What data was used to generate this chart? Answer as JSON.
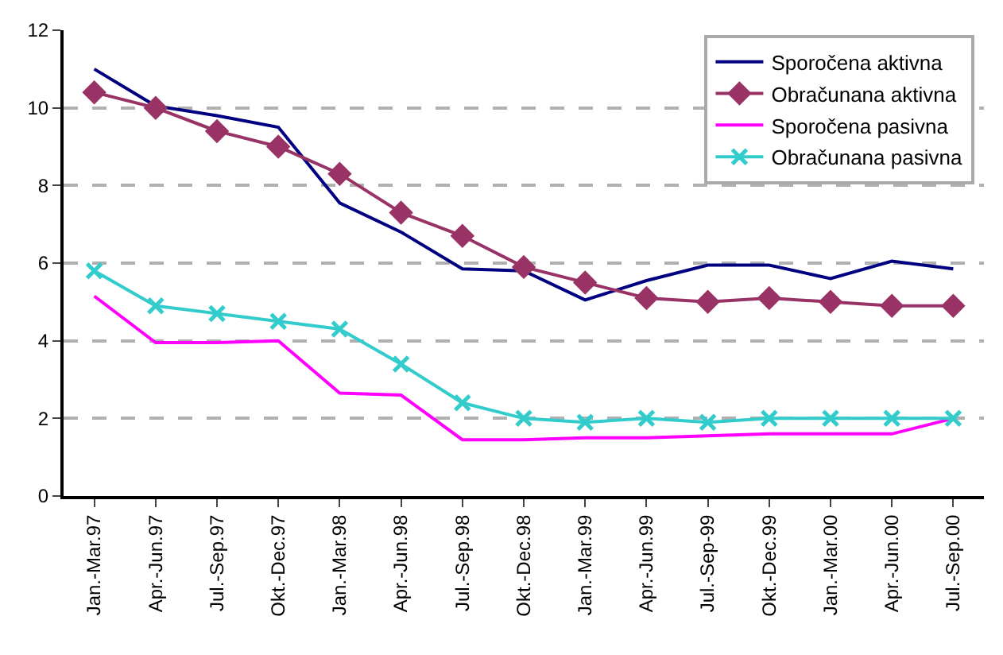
{
  "chart_data": {
    "type": "line",
    "categories": [
      "Jan.-Mar.97",
      "Apr.-Jun.97",
      "Jul.-Sep.97",
      "Okt.-Dec.97",
      "Jan.-Mar.98",
      "Apr.-Jun.98",
      "Jul.-Sep.98",
      "Okt.-Dec.98",
      "Jan.-Mar.99",
      "Apr.-Jun.99",
      "Jul.-Sep-99",
      "Okt.-Dec.99",
      "Jan.-Mar.00",
      "Apr.-Jun.00",
      "Jul.-Sep.00"
    ],
    "series": [
      {
        "name": "Sporočena aktivna",
        "color": "#000080",
        "marker": "none",
        "values": [
          11.0,
          10.05,
          9.8,
          9.5,
          7.55,
          6.8,
          5.85,
          5.8,
          5.05,
          5.55,
          5.95,
          5.95,
          5.6,
          6.05,
          5.85
        ]
      },
      {
        "name": "Obračunana aktivna",
        "color": "#993366",
        "marker": "diamond",
        "values": [
          10.4,
          10.0,
          9.4,
          9.0,
          8.3,
          7.3,
          6.7,
          5.9,
          5.5,
          5.1,
          5.0,
          5.1,
          5.0,
          4.9,
          4.9
        ]
      },
      {
        "name": "Sporočena pasivna",
        "color": "#ff00ff",
        "marker": "none",
        "values": [
          5.15,
          3.95,
          3.95,
          4.0,
          2.65,
          2.6,
          1.45,
          1.45,
          1.5,
          1.5,
          1.55,
          1.6,
          1.6,
          1.6,
          2.0
        ]
      },
      {
        "name": "Obračunana pasivna",
        "color": "#33cccc",
        "marker": "cross",
        "values": [
          5.8,
          4.9,
          4.7,
          4.5,
          4.3,
          3.4,
          2.4,
          2.0,
          1.9,
          2.0,
          1.9,
          2.0,
          2.0,
          2.0,
          2.0
        ]
      }
    ],
    "ylim": [
      0,
      12
    ],
    "yticks": [
      0,
      2,
      4,
      6,
      8,
      10,
      12
    ],
    "grid": "y",
    "legend": "top right",
    "line_style": "solid"
  }
}
